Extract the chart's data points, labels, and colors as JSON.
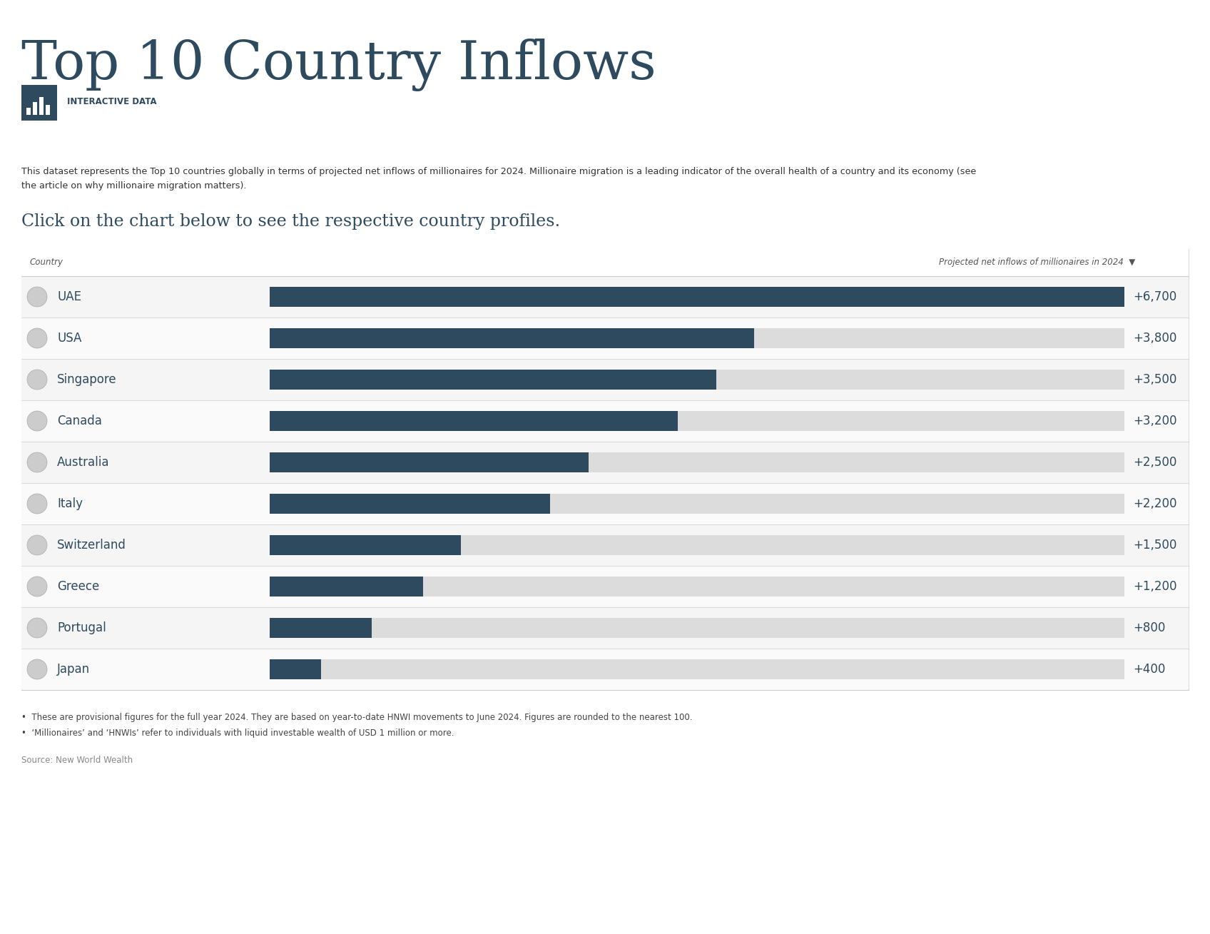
{
  "title": "Top 10 Country Inflows",
  "subtitle_label": "INTERACTIVE DATA",
  "description_line1": "This dataset represents the Top 10 countries globally in terms of projected net inflows of millionaires for 2024. Millionaire migration is a leading indicator of the overall health of a country and its economy (see",
  "description_line2": "the article on why millionaire migration matters).",
  "click_text": "Click on the chart below to see the respective country profiles.",
  "col_header_left": "Country",
  "col_header_right": "Projected net inflows of millionaires in 2024  ▼",
  "countries": [
    "UAE",
    "USA",
    "Singapore",
    "Canada",
    "Australia",
    "Italy",
    "Switzerland",
    "Greece",
    "Portugal",
    "Japan"
  ],
  "values": [
    6700,
    3800,
    3500,
    3200,
    2500,
    2200,
    1500,
    1200,
    800,
    400
  ],
  "labels": [
    "+6,700",
    "+3,800",
    "+3,500",
    "+3,200",
    "+2,500",
    "+2,200",
    "+1,500",
    "+1,200",
    "+800",
    "+400"
  ],
  "max_value": 6700,
  "bar_color": "#2e4a5e",
  "bg_bar_color": "#dcdcdc",
  "text_color": "#2e4a5e",
  "title_color": "#2e4a5e",
  "footnote1": "•  These are provisional figures for the full year 2024. They are based on year-to-date HNWI movements to June 2024. Figures are rounded to the nearest 100.",
  "footnote2": "•  ‘Millionaires’ and ‘HNWIs’ refer to individuals with liquid investable wealth of USD 1 million or more.",
  "source": "Source: New World Wealth",
  "icon_bg": "#2e4a5e"
}
